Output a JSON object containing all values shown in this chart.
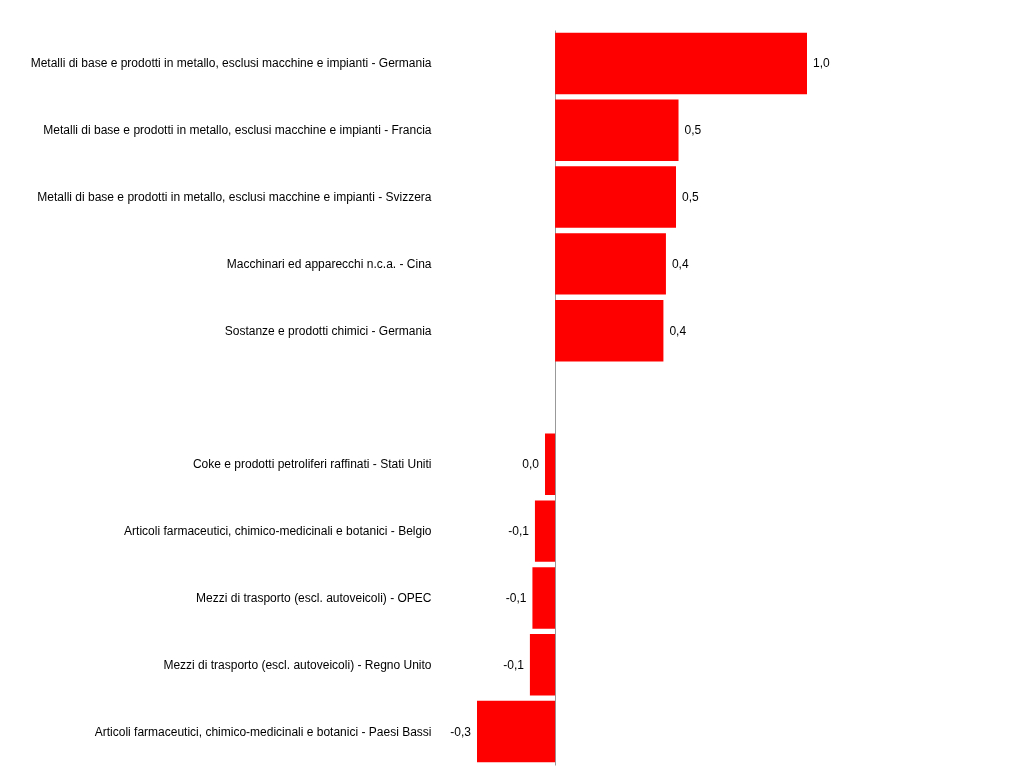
{
  "chart_data": {
    "type": "bar",
    "orientation": "horizontal",
    "categories": [
      "Metalli di base e prodotti in metallo, esclusi macchine e impianti - Germania",
      "Metalli di base e prodotti in metallo, esclusi macchine e impianti - Francia",
      "Metalli di base e prodotti in metallo, esclusi macchine e impianti - Svizzera",
      "Macchinari ed apparecchi n.c.a. - Cina",
      "Sostanze e prodotti chimici - Germania",
      null,
      "Coke e prodotti petroliferi raffinati - Stati Uniti",
      "Articoli farmaceutici, chimico-medicinali e botanici - Belgio",
      "Mezzi di trasporto (escl. autoveicoli) - OPEC",
      "Mezzi di trasporto (escl. autoveicoli) - Regno Unito",
      "Articoli farmaceutici, chimico-medicinali e botanici - Paesi Bassi"
    ],
    "series": [
      {
        "color": "#ff0000",
        "values": [
          1.0,
          0.49,
          0.48,
          0.44,
          0.43,
          null,
          -0.04,
          -0.08,
          -0.09,
          -0.1,
          -0.31
        ],
        "value_labels": [
          "1,0",
          "0,5",
          "0,5",
          "0,4",
          "0,4",
          null,
          "0,0",
          "-0,1",
          "-0,1",
          "-0,1",
          "-0,3"
        ]
      }
    ],
    "data_labels": false
  }
}
